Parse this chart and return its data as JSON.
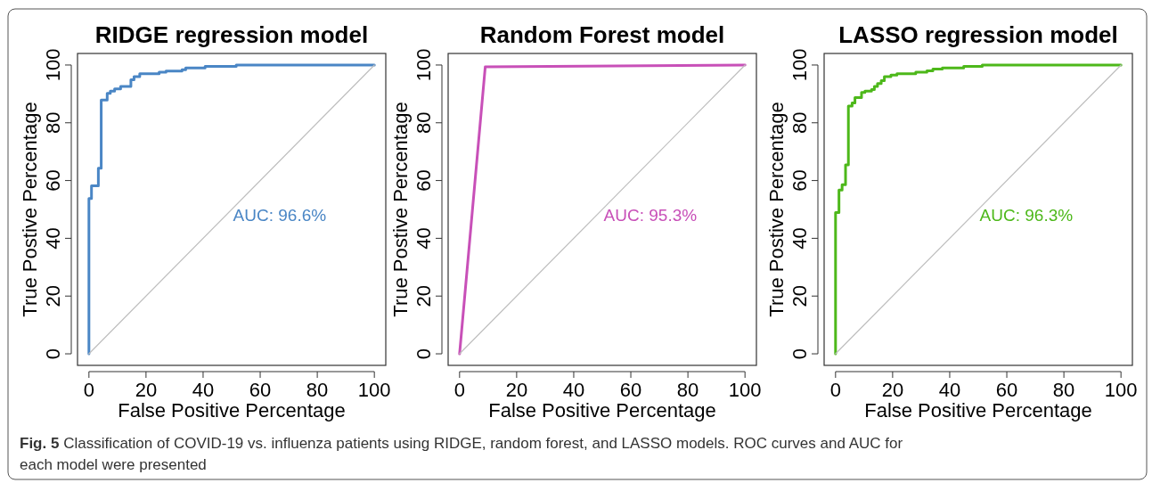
{
  "chart_data": [
    {
      "type": "line",
      "title": "RIDGE regression model",
      "xlabel": "False Positive Percentage",
      "ylabel": "True Postive Percentage",
      "xlim": [
        -4,
        104
      ],
      "ylim": [
        -4,
        104
      ],
      "xticks": [
        0,
        20,
        40,
        60,
        80,
        100
      ],
      "yticks": [
        0,
        20,
        40,
        60,
        80,
        100
      ],
      "series": [
        {
          "color": "#4a86c5",
          "x": [
            0,
            0,
            0.9,
            0.9,
            3.3,
            3.3,
            4.3,
            4.3,
            6.4,
            6.4,
            7.5,
            7.5,
            9.0,
            9.0,
            11.1,
            11.1,
            14.7,
            14.7,
            15.8,
            15.8,
            17.8,
            17.8,
            24.6,
            24.6,
            27.0,
            27.0,
            32.6,
            32.6,
            33.9,
            33.9,
            40.7,
            40.7,
            51.6,
            51.6,
            100
          ],
          "values": [
            0,
            53.8,
            53.8,
            58.2,
            58.2,
            64.3,
            64.3,
            87.9,
            87.9,
            90.2,
            90.2,
            91.0,
            91.0,
            91.7,
            91.7,
            92.6,
            92.6,
            94.9,
            94.9,
            96.0,
            96.0,
            97.0,
            97.0,
            97.5,
            97.5,
            97.9,
            97.9,
            98.4,
            98.4,
            99.0,
            99.0,
            99.5,
            99.5,
            100,
            100
          ]
        },
        {
          "color": "#bebebe",
          "x": [
            0,
            100
          ],
          "values": [
            0,
            100
          ]
        }
      ],
      "annotations": [
        "AUC: 96.6%"
      ]
    },
    {
      "type": "line",
      "title": "Random Forest model",
      "xlabel": "False Positive Percentage",
      "ylabel": "True Postive Percentage",
      "xlim": [
        -4,
        104
      ],
      "ylim": [
        -4,
        104
      ],
      "xticks": [
        0,
        20,
        40,
        60,
        80,
        100
      ],
      "yticks": [
        0,
        20,
        40,
        60,
        80,
        100
      ],
      "series": [
        {
          "color": "#c850b8",
          "x": [
            0,
            9.0,
            100
          ],
          "values": [
            0,
            99.4,
            100
          ]
        },
        {
          "color": "#bebebe",
          "x": [
            0,
            100
          ],
          "values": [
            0,
            100
          ]
        }
      ],
      "annotations": [
        "AUC: 95.3%"
      ]
    },
    {
      "type": "line",
      "title": "LASSO regression model",
      "xlabel": "False Positive Percentage",
      "ylabel": "True Postive Percentage",
      "xlim": [
        -4,
        104
      ],
      "ylim": [
        -4,
        104
      ],
      "xticks": [
        0,
        20,
        40,
        60,
        80,
        100
      ],
      "yticks": [
        0,
        20,
        40,
        60,
        80,
        100
      ],
      "series": [
        {
          "color": "#4db81a",
          "x": [
            0,
            0,
            1.2,
            1.2,
            2.3,
            2.3,
            3.5,
            3.5,
            4.5,
            4.5,
            5.8,
            5.8,
            6.8,
            6.8,
            9.1,
            9.1,
            10.3,
            10.3,
            12.6,
            12.6,
            13.6,
            13.6,
            14.7,
            14.7,
            16.0,
            16.0,
            17.1,
            17.1,
            19.4,
            19.4,
            21.5,
            21.5,
            28.1,
            28.1,
            32.0,
            32.0,
            34.1,
            34.1,
            37.4,
            37.4,
            44.9,
            44.9,
            51.4,
            51.4,
            100
          ],
          "values": [
            0,
            48.9,
            48.9,
            56.7,
            56.7,
            58.6,
            58.6,
            65.4,
            65.4,
            85.8,
            85.8,
            86.9,
            86.9,
            88.7,
            88.7,
            90.5,
            90.5,
            91.0,
            91.0,
            91.5,
            91.5,
            92.6,
            92.6,
            93.6,
            93.6,
            94.6,
            94.6,
            96.0,
            96.0,
            96.5,
            96.5,
            97.0,
            97.0,
            97.5,
            97.5,
            98.0,
            98.0,
            98.6,
            98.6,
            99.0,
            99.0,
            99.5,
            99.5,
            100,
            100
          ]
        },
        {
          "color": "#bebebe",
          "x": [
            0,
            100
          ],
          "values": [
            0,
            100
          ]
        }
      ],
      "annotations": [
        "AUC: 96.3%",
        "Fig. 5 Classification of COVID-19 vs. influenza patients using RIDGE, random forest, and LASSO models. ROC curves and AUC for each model were presented"
      ]
    }
  ]
}
